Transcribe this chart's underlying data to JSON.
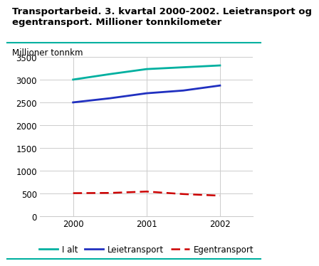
{
  "title_line1": "Transportarbeid. 3. kvartal 2000-2002. Leietransport og",
  "title_line2": "egentransport. Millioner tonnkilometer",
  "ylabel": "Millioner tonnkm",
  "x_values": [
    2000,
    2000.5,
    2001,
    2001.5,
    2002
  ],
  "i_alt": [
    3000,
    3120,
    3230,
    3270,
    3310
  ],
  "leietransport": [
    2500,
    2590,
    2700,
    2760,
    2870
  ],
  "egentransport": [
    510,
    515,
    545,
    490,
    455
  ],
  "ylim": [
    0,
    3500
  ],
  "yticks": [
    0,
    500,
    1000,
    1500,
    2000,
    2500,
    3000,
    3500
  ],
  "xticks": [
    2000,
    2001,
    2002
  ],
  "color_ialt": "#00b0a0",
  "color_leie": "#2030c0",
  "color_eigen": "#cc0000",
  "bg_color": "#ffffff",
  "title_fontsize": 9.5,
  "legend_fontsize": 8.5,
  "tick_fontsize": 8.5,
  "ylabel_fontsize": 8.5,
  "separator_color": "#00b0a0"
}
